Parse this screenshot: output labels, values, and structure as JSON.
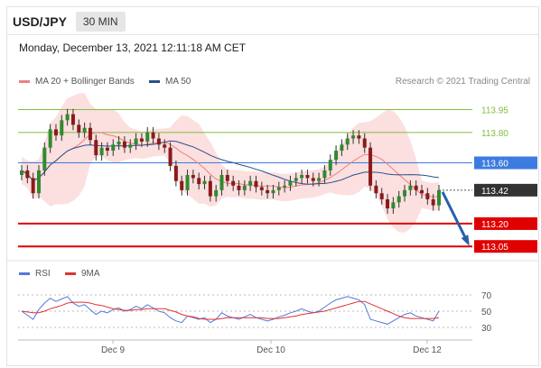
{
  "header": {
    "symbol": "USD/JPY",
    "timeframe": "30 MIN",
    "timestamp": "Monday, December 13, 2021 12:11:18 AM CET"
  },
  "legend": {
    "ma20_label": "MA 20 + Bollinger Bands",
    "ma50_label": "MA 50",
    "copyright": "Research © 2021 Trading Central"
  },
  "rsi_legend": {
    "rsi_label": "RSI",
    "ma_label": "9MA"
  },
  "colors": {
    "candle_up": "#2e8b2e",
    "candle_down": "#8b1a1a",
    "bollinger_fill": "#fbd4d4",
    "ma20": "#f08080",
    "ma50": "#2a4f8a",
    "resistance_green": "#7fbf3f",
    "support_red": "#e00000",
    "pivot_blue": "#3d7be0",
    "current_price_bg": "#333333",
    "arrow": "#2a5fa8",
    "rsi": "#5577dd",
    "rsi_ma": "#dd3333"
  },
  "chart_data": [
    {
      "type": "candlestick",
      "title": "USD/JPY 30 MIN",
      "x_labels": [
        "Dec 9",
        "Dec 10",
        "Dec 12"
      ],
      "ylim": [
        112.98,
        114.06
      ],
      "levels": [
        {
          "value": 113.95,
          "label": "113.95",
          "kind": "resistance"
        },
        {
          "value": 113.8,
          "label": "113.80",
          "kind": "resistance"
        },
        {
          "value": 113.6,
          "label": "113.60",
          "kind": "pivot"
        },
        {
          "value": 113.42,
          "label": "113.42",
          "kind": "current"
        },
        {
          "value": 113.2,
          "label": "113.20",
          "kind": "support"
        },
        {
          "value": 113.05,
          "label": "113.05",
          "kind": "support"
        }
      ],
      "closes": [
        113.55,
        113.5,
        113.4,
        113.55,
        113.7,
        113.82,
        113.78,
        113.88,
        113.92,
        113.85,
        113.8,
        113.83,
        113.75,
        113.65,
        113.7,
        113.68,
        113.72,
        113.74,
        113.7,
        113.72,
        113.76,
        113.74,
        113.8,
        113.76,
        113.72,
        113.7,
        113.58,
        113.48,
        113.42,
        113.52,
        113.5,
        113.46,
        113.48,
        113.38,
        113.42,
        113.52,
        113.48,
        113.45,
        113.42,
        113.45,
        113.48,
        113.44,
        113.42,
        113.4,
        113.42,
        113.44,
        113.45,
        113.48,
        113.5,
        113.52,
        113.5,
        113.48,
        113.5,
        113.55,
        113.62,
        113.68,
        113.72,
        113.76,
        113.78,
        113.76,
        113.7,
        113.45,
        113.4,
        113.36,
        113.3,
        113.34,
        113.38,
        113.42,
        113.45,
        113.42,
        113.4,
        113.36,
        113.32,
        113.42
      ],
      "forecast": {
        "from": 113.42,
        "to": 113.05
      }
    },
    {
      "type": "line",
      "title": "RSI",
      "ylim": [
        20,
        80
      ],
      "yticks": [
        70,
        50,
        30
      ],
      "series": [
        {
          "name": "RSI",
          "values": [
            50,
            45,
            40,
            52,
            60,
            66,
            62,
            65,
            68,
            60,
            56,
            58,
            52,
            46,
            50,
            48,
            52,
            54,
            50,
            52,
            56,
            53,
            58,
            54,
            50,
            48,
            42,
            38,
            36,
            44,
            42,
            40,
            42,
            36,
            40,
            48,
            44,
            42,
            40,
            43,
            46,
            42,
            40,
            38,
            40,
            43,
            45,
            48,
            50,
            53,
            50,
            48,
            50,
            55,
            60,
            64,
            66,
            68,
            66,
            64,
            58,
            40,
            38,
            36,
            34,
            38,
            42,
            46,
            48,
            44,
            42,
            40,
            38,
            50
          ]
        },
        {
          "name": "9MA",
          "values": [
            50,
            49,
            48,
            48,
            50,
            53,
            55,
            57,
            60,
            61,
            61,
            61,
            60,
            58,
            57,
            55,
            53,
            52,
            51,
            51,
            52,
            52,
            53,
            53,
            53,
            53,
            51,
            49,
            46,
            44,
            43,
            41,
            40,
            40,
            40,
            41,
            42,
            42,
            42,
            42,
            42,
            42,
            42,
            41,
            41,
            41,
            42,
            43,
            44,
            46,
            47,
            48,
            49,
            50,
            52,
            54,
            56,
            58,
            60,
            62,
            62,
            59,
            56,
            53,
            50,
            47,
            44,
            42,
            41,
            41,
            41,
            41,
            41,
            42
          ]
        }
      ]
    }
  ]
}
